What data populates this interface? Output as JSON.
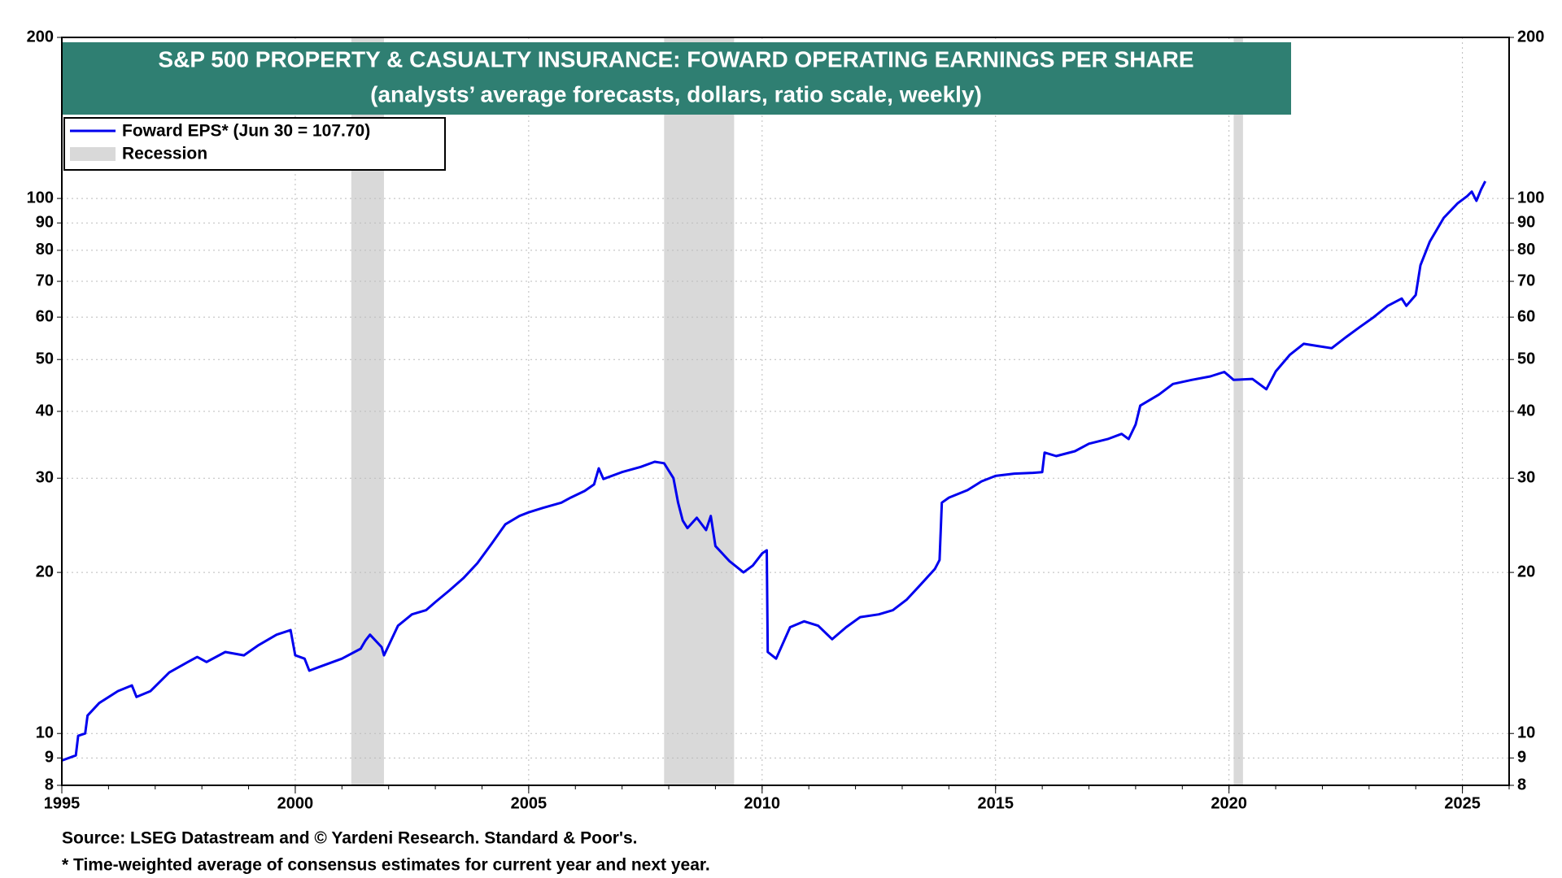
{
  "chart_data": {
    "type": "line",
    "title": "S&P 500 PROPERTY & CASUALTY INSURANCE: FOWARD OPERATING EARNINGS PER SHARE",
    "subtitle": "(analysts’ average forecasts, dollars, ratio scale, weekly)",
    "source": "Source: LSEG Datastream and © Yardeni Research. Standard & Poor's.",
    "footnote": "* Time-weighted average of consensus estimates for current year and next year.",
    "log_scale": true,
    "grid": true,
    "legend": "upper left",
    "xlim": [
      1995,
      2026
    ],
    "xticks": [
      1995,
      2000,
      2005,
      2010,
      2015,
      2020,
      2025
    ],
    "ylim": [
      8,
      200
    ],
    "yticks": [
      8,
      9,
      10,
      20,
      30,
      40,
      50,
      60,
      70,
      80,
      90,
      100,
      200
    ],
    "recession_label": "Recession",
    "recession_color": "#d9d9d9",
    "recessions": [
      [
        2001.2,
        2001.9
      ],
      [
        2007.9,
        2009.4
      ],
      [
        2020.1,
        2020.3
      ]
    ],
    "x": [
      1995.0,
      1995.3,
      1995.35,
      1995.5,
      1995.55,
      1995.8,
      1996.2,
      1996.5,
      1996.6,
      1996.9,
      1997.3,
      1997.7,
      1997.9,
      1998.1,
      1998.5,
      1998.9,
      1999.2,
      1999.6,
      1999.9,
      2000.0,
      2000.2,
      2000.3,
      2000.5,
      2001.0,
      2001.4,
      2001.5,
      2001.6,
      2001.85,
      2001.9,
      2002.0,
      2002.2,
      2002.5,
      2002.8,
      2003.0,
      2003.3,
      2003.6,
      2003.9,
      2004.2,
      2004.5,
      2004.8,
      2005.0,
      2005.3,
      2005.7,
      2005.9,
      2006.2,
      2006.4,
      2006.5,
      2006.6,
      2007.0,
      2007.4,
      2007.7,
      2007.9,
      2008.1,
      2008.2,
      2008.3,
      2008.4,
      2008.6,
      2008.8,
      2008.9,
      2009.0,
      2009.3,
      2009.6,
      2009.8,
      2010.0,
      2010.1,
      2010.12,
      2010.3,
      2010.6,
      2010.9,
      2011.2,
      2011.5,
      2011.8,
      2012.1,
      2012.5,
      2012.8,
      2013.1,
      2013.4,
      2013.7,
      2013.8,
      2013.85,
      2014.0,
      2014.4,
      2014.7,
      2015.0,
      2015.4,
      2015.8,
      2016.0,
      2016.05,
      2016.3,
      2016.7,
      2017.0,
      2017.4,
      2017.7,
      2017.85,
      2018.0,
      2018.1,
      2018.5,
      2018.8,
      2019.2,
      2019.6,
      2019.9,
      2020.1,
      2020.5,
      2020.8,
      2021.0,
      2021.3,
      2021.6,
      2021.9,
      2022.2,
      2022.5,
      2022.8,
      2023.1,
      2023.4,
      2023.7,
      2023.8,
      2024.0,
      2024.1,
      2024.3,
      2024.6,
      2024.9,
      2025.1,
      2025.2,
      2025.3,
      2025.4,
      2025.49
    ],
    "series": [
      {
        "name": "Foward EPS* (Jun 30 = 107.70)",
        "color": "#0000ee",
        "values": [
          8.9,
          9.1,
          9.9,
          10.0,
          10.8,
          11.4,
          12.0,
          12.3,
          11.7,
          12.0,
          13.0,
          13.6,
          13.9,
          13.6,
          14.2,
          14.0,
          14.6,
          15.3,
          15.6,
          14.0,
          13.8,
          13.1,
          13.3,
          13.8,
          14.4,
          14.9,
          15.3,
          14.5,
          14.0,
          14.6,
          15.9,
          16.7,
          17.0,
          17.6,
          18.5,
          19.5,
          20.8,
          22.6,
          24.6,
          25.5,
          25.9,
          26.4,
          27.0,
          27.6,
          28.4,
          29.2,
          31.3,
          29.9,
          30.8,
          31.5,
          32.2,
          32.0,
          30.0,
          27.0,
          25.0,
          24.2,
          25.3,
          24.0,
          25.5,
          22.4,
          21.0,
          20.0,
          20.6,
          21.7,
          22.0,
          14.2,
          13.8,
          15.8,
          16.2,
          15.9,
          15.0,
          15.8,
          16.5,
          16.7,
          17.0,
          17.8,
          19.0,
          20.3,
          21.1,
          27.0,
          27.6,
          28.5,
          29.6,
          30.3,
          30.6,
          30.7,
          30.8,
          33.5,
          33.0,
          33.7,
          34.8,
          35.5,
          36.3,
          35.5,
          37.8,
          41.0,
          43.0,
          45.0,
          45.8,
          46.5,
          47.4,
          45.8,
          46.0,
          44.0,
          47.5,
          51.0,
          53.5,
          53.0,
          52.5,
          55.0,
          57.5,
          60.0,
          63.0,
          65.0,
          63.0,
          66.0,
          75.0,
          83.0,
          92.0,
          98.0,
          101.0,
          103.0,
          99.0,
          104.0,
          107.7
        ]
      }
    ]
  }
}
